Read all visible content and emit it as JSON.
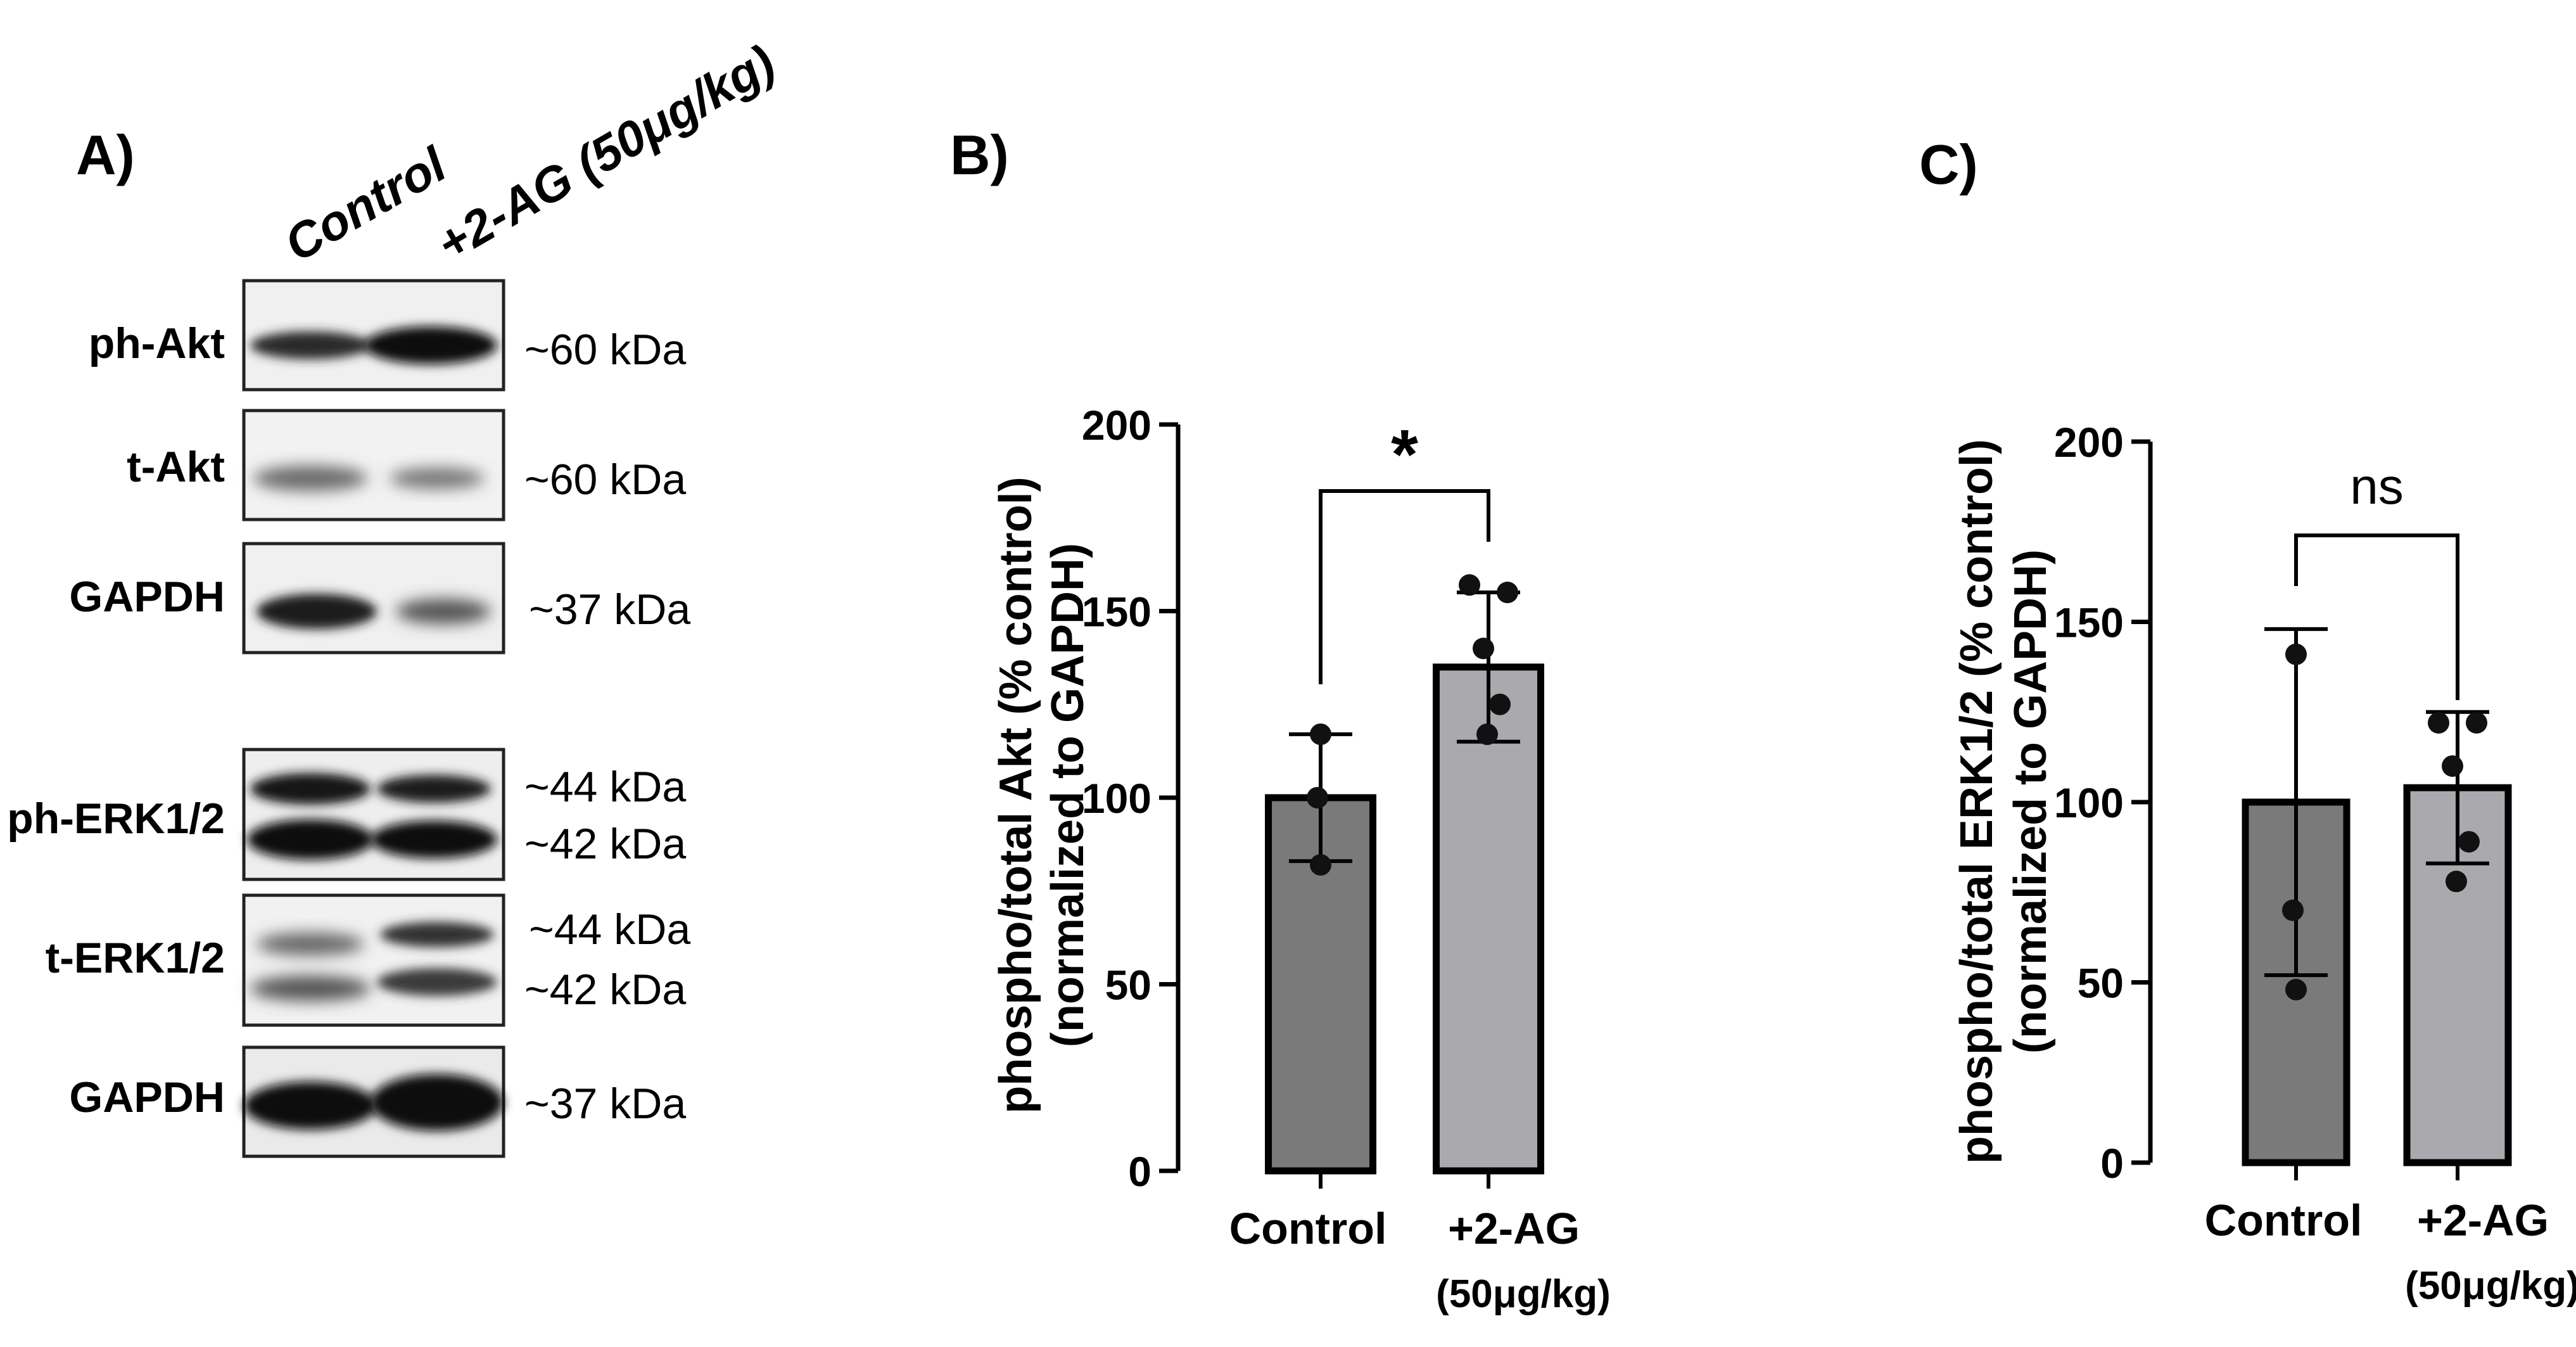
{
  "panels": {
    "a": "A)",
    "b": "B)",
    "c": "C)"
  },
  "blot": {
    "lanes": [
      "Control",
      "+2-AG (50μg/kg)"
    ],
    "rows": [
      {
        "label": "ph-Akt",
        "kda": [
          "~60 kDa"
        ]
      },
      {
        "label": "t-Akt",
        "kda": [
          "~60 kDa"
        ]
      },
      {
        "label": "GAPDH",
        "kda": [
          "~37 kDa"
        ]
      },
      {
        "label": "ph-ERK1/2",
        "kda": [
          "~44 kDa",
          "~42 kDa"
        ]
      },
      {
        "label": "t-ERK1/2",
        "kda": [
          "~44 kDa",
          "~42 kDa"
        ]
      },
      {
        "label": "GAPDH",
        "kda": [
          "~37 kDa"
        ]
      }
    ]
  },
  "colors": {
    "control_bar": "#7a7a7a",
    "treated_bar": "#a9a9ae",
    "axis": "#000000"
  },
  "chart_data": [
    {
      "panel": "B",
      "type": "bar",
      "categories": [
        "Control",
        "+2-AG"
      ],
      "category_sublabels": [
        "",
        "(50μg/kg)"
      ],
      "values": [
        100,
        135
      ],
      "error_sd": [
        17,
        20
      ],
      "points": [
        [
          117,
          100,
          82
        ],
        [
          157,
          155,
          140,
          125,
          117
        ]
      ],
      "ylabel_line1": "phospho/total Akt (% control)",
      "ylabel_line2": "(normalized to GAPDH)",
      "ylim": [
        0,
        200
      ],
      "yticks": [
        "0",
        "50",
        "100",
        "150",
        "200"
      ],
      "significance": "*"
    },
    {
      "panel": "C",
      "type": "bar",
      "categories": [
        "Control",
        "+2-AG"
      ],
      "category_sublabels": [
        "",
        "(50μg/kg)"
      ],
      "values": [
        100,
        104
      ],
      "error_sd": [
        48,
        21
      ],
      "points": [
        [
          141,
          70,
          48
        ],
        [
          122,
          122,
          110,
          89,
          78
        ]
      ],
      "ylabel_line1": "phospho/total ERK1/2 (% control)",
      "ylabel_line2": "(normalized to GAPDH)",
      "ylim": [
        0,
        200
      ],
      "yticks": [
        "0",
        "50",
        "100",
        "150",
        "200"
      ],
      "significance": "ns"
    }
  ]
}
